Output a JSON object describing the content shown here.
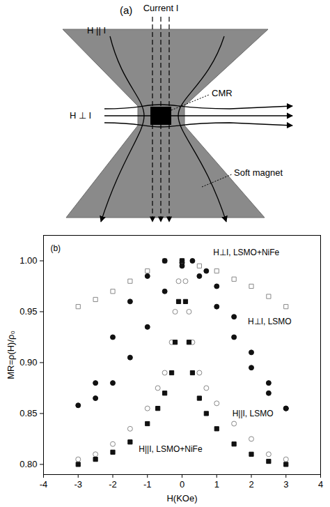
{
  "diagram": {
    "panel_label": "(a)",
    "current_label": "Current I",
    "field_parallel_label": "H || I",
    "field_perp_label": "H ⊥ I",
    "sample_label": "CMR",
    "magnet_label": "Soft magnet"
  },
  "chart_data": {
    "type": "line",
    "x_label": "H(KOe)",
    "y_label": "MR=ρ(H)/ρ₀",
    "xlim": [
      -4,
      4
    ],
    "xticks": [
      -4,
      -3,
      -2,
      -1,
      0,
      1,
      2,
      3,
      4
    ],
    "ylim": [
      0.79,
      1.025
    ],
    "yticks": [
      {
        "value": 0.8,
        "label": "0.80"
      },
      {
        "value": 0.85,
        "label": "0.85"
      },
      {
        "value": 0.9,
        "label": "0.90"
      },
      {
        "value": 0.95,
        "label": "0.95"
      },
      {
        "value": 1.0,
        "label": "1.00"
      }
    ],
    "series": [
      {
        "name": "H⊥I, LSMO+NiFe",
        "color": "#888888",
        "marker": "square-open",
        "x": [
          -3,
          -2.5,
          -2,
          -1.5,
          -1,
          -0.5,
          0,
          0.5,
          1,
          1.5,
          2,
          2.5,
          3
        ],
        "values": [
          0.955,
          0.962,
          0.97,
          0.98,
          0.99,
          1.0,
          1.0,
          0.995,
          0.99,
          0.982,
          0.975,
          0.965,
          0.955
        ]
      },
      {
        "name": "H⊥I, LSMO",
        "color": "#111111",
        "marker": "circle",
        "x": [
          3,
          2.5,
          2,
          1.5,
          1,
          0.5,
          0,
          -0.5,
          -1,
          -1.5,
          -2,
          -2.5,
          -3,
          -2.5,
          -2,
          -1.5,
          -1,
          -0.5,
          0,
          0.3,
          0.7,
          1,
          1.5,
          2,
          2.5,
          3
        ],
        "values": [
          0.855,
          0.87,
          0.895,
          0.925,
          0.955,
          0.985,
          0.998,
          1.0,
          0.985,
          0.96,
          0.925,
          0.88,
          0.858,
          0.865,
          0.88,
          0.905,
          0.935,
          0.97,
          0.995,
          1.0,
          0.99,
          0.975,
          0.945,
          0.91,
          0.88,
          0.855
        ]
      },
      {
        "name": "H||I, LSMO",
        "color": "#888888",
        "marker": "circle-open",
        "x": [
          -3,
          -2.5,
          -2,
          -1.5,
          -1,
          -0.7,
          -0.5,
          -0.3,
          -0.2,
          -0.1,
          0,
          0.1,
          0.2,
          0.3,
          0.5,
          0.7,
          1,
          1.5,
          2,
          2.5,
          3
        ],
        "values": [
          0.805,
          0.81,
          0.82,
          0.835,
          0.855,
          0.875,
          0.89,
          0.92,
          0.95,
          0.98,
          1.0,
          0.98,
          0.95,
          0.92,
          0.89,
          0.875,
          0.86,
          0.84,
          0.825,
          0.81,
          0.805
        ]
      },
      {
        "name": "H||I, LSMO+NiFe",
        "color": "#111111",
        "marker": "square",
        "x": [
          -3,
          -2.5,
          -2,
          -1.5,
          -1,
          -0.7,
          -0.5,
          -0.3,
          -0.2,
          -0.1,
          0,
          0.1,
          0.2,
          0.3,
          0.5,
          0.7,
          1,
          1.5,
          2,
          2.5,
          3
        ],
        "values": [
          0.8,
          0.805,
          0.812,
          0.822,
          0.84,
          0.855,
          0.87,
          0.89,
          0.92,
          0.96,
          1.0,
          0.96,
          0.92,
          0.89,
          0.865,
          0.85,
          0.835,
          0.82,
          0.81,
          0.803,
          0.8
        ]
      }
    ],
    "annotations": [
      {
        "text": "(b)",
        "x": -3.8,
        "y": 1.012
      },
      {
        "text": "H⊥I, LSMO+NiFe",
        "x": 0.9,
        "y": 1.008
      },
      {
        "text": "H⊥I, LSMO",
        "x": 1.9,
        "y": 0.94
      },
      {
        "text": "H||I, LSMO",
        "x": 1.45,
        "y": 0.85
      },
      {
        "text": "H||I, LSMO+NiFe",
        "x": -1.25,
        "y": 0.815
      }
    ]
  }
}
